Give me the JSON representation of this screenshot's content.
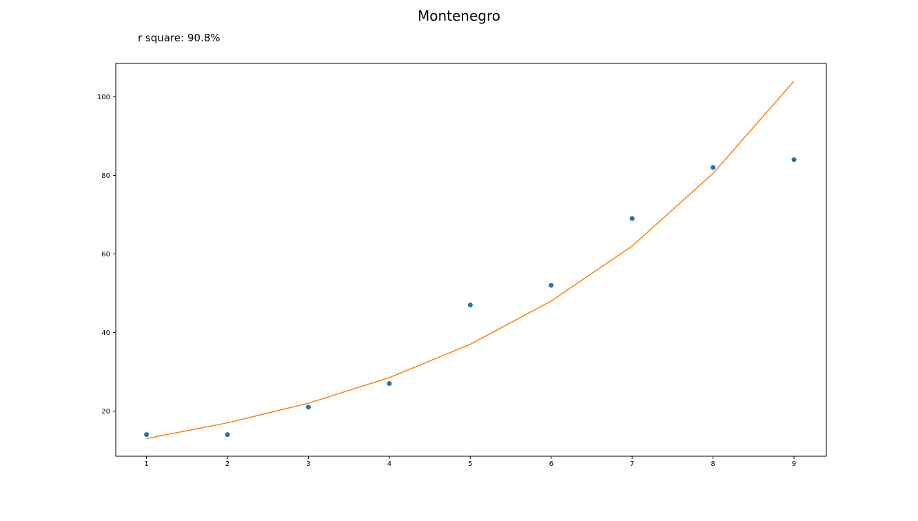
{
  "chart_data": {
    "type": "scatter",
    "title": "Montenegro",
    "annotation": "r square: 90.8%",
    "xlabel": "",
    "ylabel": "",
    "x": [
      1,
      2,
      3,
      4,
      5,
      6,
      7,
      8,
      9
    ],
    "x_ticks": [
      "1",
      "2",
      "3",
      "4",
      "5",
      "6",
      "7",
      "8",
      "9"
    ],
    "y_ticks": [
      "20",
      "40",
      "60",
      "80",
      "100"
    ],
    "xlim": [
      0.62,
      9.4
    ],
    "ylim": [
      8.5,
      108.5
    ],
    "grid": false,
    "series": [
      {
        "kind": "scatter",
        "color": "#1f77b4",
        "values": [
          14,
          14,
          21,
          27,
          47,
          52,
          69,
          82,
          84
        ]
      },
      {
        "kind": "line",
        "color": "#ff7f0e",
        "values": [
          13,
          17,
          22,
          28.5,
          37,
          48,
          62,
          80.5,
          104
        ]
      }
    ]
  }
}
